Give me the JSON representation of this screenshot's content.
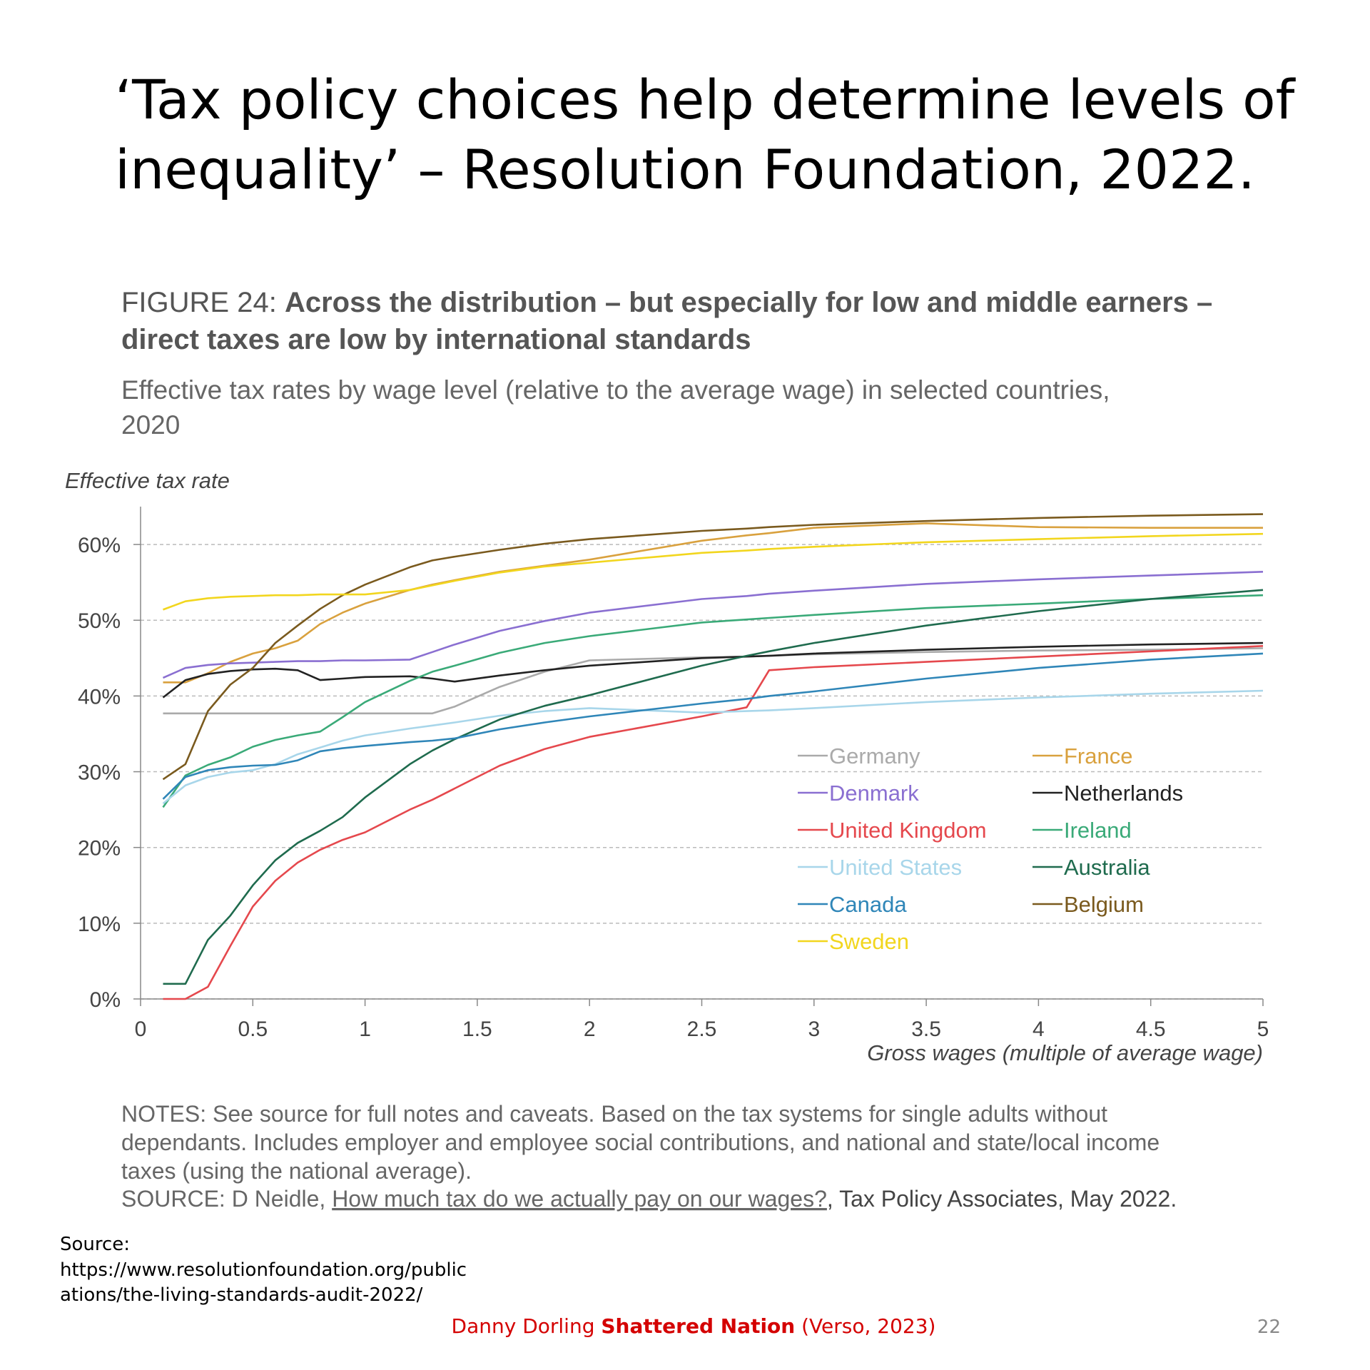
{
  "slide_title_lines": [
    "‘Tax policy choices help determine levels of",
    "inequality’ – Resolution Foundation, 2022."
  ],
  "figure": {
    "label": "FIGURE 24:",
    "title_lines": [
      "Across the distribution – but especially for low and middle earners –",
      "direct taxes are low by international standards"
    ],
    "subtitle_lines": [
      "Effective tax rates by wage level (relative to the average wage) in selected countries,",
      "2020"
    ]
  },
  "chart_data": {
    "type": "line",
    "y_label": "Effective tax rate",
    "x_label": "Gross wages (multiple of average wage)",
    "x": [
      0.1,
      0.2,
      0.3,
      0.4,
      0.5,
      0.6,
      0.7,
      0.8,
      0.9,
      1,
      1.2,
      1.3,
      1.4,
      1.6,
      1.8,
      2,
      2.5,
      2.7,
      2.8,
      3,
      3.5,
      4,
      4.5,
      5
    ],
    "xlim": [
      0,
      5
    ],
    "xticks": [
      0,
      0.5,
      1,
      1.5,
      2,
      2.5,
      3,
      3.5,
      4,
      4.5,
      5
    ],
    "ylim": [
      0,
      65
    ],
    "yticks": [
      {
        "value": 0,
        "label": "0%"
      },
      {
        "value": 10,
        "label": "10%"
      },
      {
        "value": 20,
        "label": "20%"
      },
      {
        "value": 30,
        "label": "30%"
      },
      {
        "value": 40,
        "label": "40%"
      },
      {
        "value": 50,
        "label": "50%"
      },
      {
        "value": 60,
        "label": "60%"
      }
    ],
    "grid": true,
    "series": [
      {
        "name": "Germany",
        "color": "#aaaaaa",
        "values": [
          37.7,
          37.7,
          37.7,
          37.7,
          37.7,
          37.7,
          37.7,
          37.7,
          37.7,
          37.7,
          37.7,
          37.7,
          38.6,
          41.2,
          43.2,
          44.7,
          45.1,
          45.2,
          45.3,
          45.5,
          45.8,
          46,
          46.1,
          46.3
        ]
      },
      {
        "name": "France",
        "color": "#d9a13e",
        "values": [
          41.8,
          41.8,
          43,
          44.5,
          45.6,
          46.3,
          47.3,
          49.5,
          51,
          52.2,
          54,
          54.7,
          55.3,
          56.4,
          57.2,
          58,
          60.5,
          61.2,
          61.5,
          62.2,
          62.8,
          62.3,
          62.2,
          62.2
        ]
      },
      {
        "name": "Denmark",
        "color": "#8a6fd1",
        "values": [
          42.4,
          43.7,
          44.1,
          44.3,
          44.4,
          44.5,
          44.6,
          44.6,
          44.7,
          44.7,
          44.8,
          45.8,
          46.8,
          48.6,
          49.9,
          51,
          52.8,
          53.2,
          53.5,
          53.9,
          54.8,
          55.4,
          55.9,
          56.4
        ]
      },
      {
        "name": "Netherlands",
        "color": "#222222",
        "values": [
          39.8,
          42.1,
          42.9,
          43.3,
          43.5,
          43.6,
          43.4,
          42.1,
          42.3,
          42.5,
          42.6,
          42.3,
          41.9,
          42.7,
          43.4,
          44,
          45,
          45.2,
          45.3,
          45.6,
          46.1,
          46.5,
          46.8,
          47
        ]
      },
      {
        "name": "United Kingdom",
        "color": "#e5484d",
        "values": [
          0,
          0,
          1.6,
          7,
          12.2,
          15.6,
          18,
          19.7,
          21,
          22,
          25,
          26.3,
          27.8,
          30.8,
          33,
          34.6,
          37.3,
          38.5,
          43.4,
          43.8,
          44.5,
          45.2,
          45.9,
          46.6
        ]
      },
      {
        "name": "Ireland",
        "color": "#3aaa78",
        "values": [
          25.3,
          29.5,
          30.9,
          31.9,
          33.3,
          34.2,
          34.8,
          35.3,
          37.2,
          39.2,
          42,
          43.2,
          44,
          45.7,
          47,
          47.9,
          49.7,
          50.1,
          50.3,
          50.7,
          51.6,
          52.2,
          52.8,
          53.3
        ]
      },
      {
        "name": "United States",
        "color": "#a8d6ea",
        "values": [
          25.8,
          28.2,
          29.3,
          29.9,
          30.2,
          31,
          32.3,
          33.2,
          34.1,
          34.8,
          35.7,
          36.1,
          36.5,
          37.4,
          38,
          38.4,
          37.8,
          38,
          38.1,
          38.4,
          39.2,
          39.8,
          40.3,
          40.7
        ]
      },
      {
        "name": "Australia",
        "color": "#1f6b4e",
        "values": [
          2,
          2,
          7.8,
          11,
          15,
          18.3,
          20.6,
          22.2,
          24,
          26.6,
          31,
          32.8,
          34.3,
          36.9,
          38.7,
          40.1,
          44,
          45.3,
          45.9,
          47,
          49.3,
          51.2,
          52.8,
          54
        ]
      },
      {
        "name": "Canada",
        "color": "#2f86b8",
        "values": [
          26.4,
          29.3,
          30.2,
          30.6,
          30.8,
          30.9,
          31.5,
          32.7,
          33.1,
          33.4,
          33.9,
          34.1,
          34.4,
          35.6,
          36.5,
          37.3,
          39,
          39.6,
          40,
          40.6,
          42.3,
          43.7,
          44.8,
          45.6
        ]
      },
      {
        "name": "Belgium",
        "color": "#7a5a1e",
        "values": [
          29,
          31,
          38,
          41.5,
          43.7,
          47,
          49.3,
          51.5,
          53.3,
          54.7,
          57,
          57.9,
          58.4,
          59.3,
          60.1,
          60.7,
          61.8,
          62.1,
          62.3,
          62.6,
          63.1,
          63.5,
          63.8,
          64
        ]
      },
      {
        "name": "Sweden",
        "color": "#f2d61e",
        "values": [
          51.4,
          52.5,
          52.9,
          53.1,
          53.2,
          53.3,
          53.3,
          53.4,
          53.4,
          53.4,
          54,
          54.6,
          55.2,
          56.3,
          57.1,
          57.6,
          58.9,
          59.2,
          59.4,
          59.7,
          60.3,
          60.7,
          61.1,
          61.4
        ]
      }
    ]
  },
  "notes": {
    "lines": [
      "NOTES: See source for full notes and caveats. Based on the tax systems for single adults without",
      "dependants. Includes employer and employee social contributions, and national and state/local income",
      "taxes (using the national average)."
    ],
    "source_prefix": "SOURCE: D Neidle, ",
    "source_link": "How much tax do we actually pay on our wages?",
    "source_suffix": ", Tax Policy Associates, May 2022."
  },
  "slide_source": {
    "label": "Source:",
    "url_lines": [
      "https://www.resolutionfoundation.org/public",
      "ations/the-living-standards-audit-2022/"
    ]
  },
  "footer": {
    "author": "Danny Dorling ",
    "book": "Shattered Nation",
    "publisher": " (Verso, 2023)"
  },
  "page_number": "22"
}
